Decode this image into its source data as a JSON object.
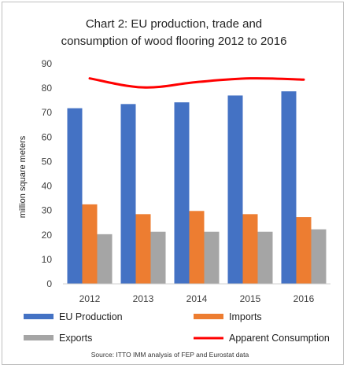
{
  "chart_data": {
    "type": "bar",
    "title_lines": [
      "Chart 2: EU production, trade and",
      "consumption of wood flooring 2012 to 2016"
    ],
    "xlabel": "",
    "ylabel": "million square meters",
    "ylim": [
      0,
      90
    ],
    "yticks": [
      "0",
      "10",
      "20",
      "30",
      "40",
      "50",
      "60",
      "70",
      "80",
      "90"
    ],
    "grid": false,
    "legend_placement": "bottom",
    "categories": [
      "2012",
      "2013",
      "2014",
      "2015",
      "2016"
    ],
    "series": [
      {
        "name": "EU Production",
        "kind": "bar",
        "color": "#4472C4",
        "values": [
          71.8,
          73.5,
          74.2,
          77.0,
          78.7
        ]
      },
      {
        "name": "Imports",
        "kind": "bar",
        "color": "#ED7D31",
        "values": [
          32.5,
          28.5,
          29.8,
          28.5,
          27.3
        ]
      },
      {
        "name": "Exports",
        "kind": "bar",
        "color": "#A5A5A5",
        "values": [
          20.3,
          21.3,
          21.3,
          21.3,
          22.3
        ]
      },
      {
        "name": "Apparent Consumption",
        "kind": "line",
        "color": "#FF0000",
        "values": [
          84.0,
          80.3,
          82.5,
          84.0,
          83.5
        ]
      }
    ],
    "source": "Source: ITTO IMM analysis of FEP and Eurostat data"
  }
}
